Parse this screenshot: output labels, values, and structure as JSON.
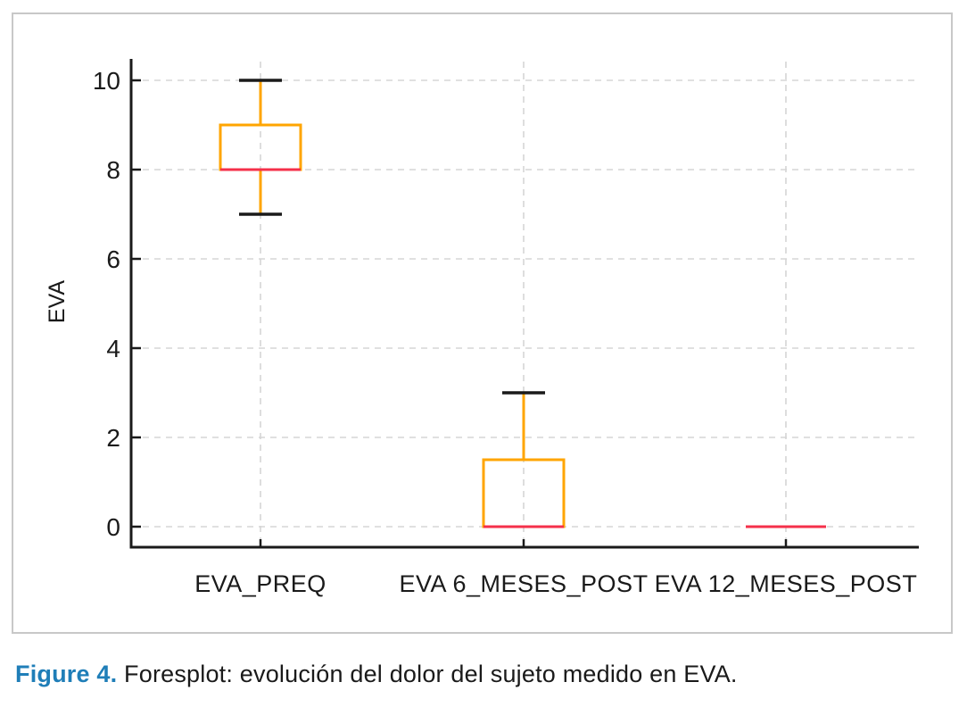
{
  "figure": {
    "caption_label": "Figure 4.",
    "caption_text": " Foresplot: evolución del dolor del sujeto medido en EVA."
  },
  "chart_data": {
    "type": "boxplot",
    "title": "",
    "xlabel": "",
    "ylabel": "EVA",
    "categories": [
      "EVA_PREQ",
      "EVA 6_MESES_POST",
      "EVA 12_MESES_POST"
    ],
    "series": [
      {
        "name": "EVA_PREQ",
        "whisker_low": 7,
        "q1": 8,
        "median": 8,
        "q3": 9,
        "whisker_high": 10
      },
      {
        "name": "EVA 6_MESES_POST",
        "whisker_low": 0,
        "q1": 0,
        "median": 0,
        "q3": 1.5,
        "whisker_high": 3
      },
      {
        "name": "EVA 12_MESES_POST",
        "whisker_low": 0,
        "q1": 0,
        "median": 0,
        "q3": 0,
        "whisker_high": 0
      }
    ],
    "yticks": [
      0,
      2,
      4,
      6,
      8,
      10
    ],
    "ylim": [
      -0.5,
      10.5
    ],
    "grid": {
      "horizontal": true,
      "vertical": true,
      "style": "dashed"
    },
    "legend": "none",
    "colors": {
      "box": "#FFA500",
      "whisker": "#FFA500",
      "median": "#F5304A",
      "whisker_cap": "#1a1a1a",
      "axis": "#1a1a1a",
      "grid": "#d5d5d5",
      "tick_label": "#1a1a1a"
    }
  }
}
